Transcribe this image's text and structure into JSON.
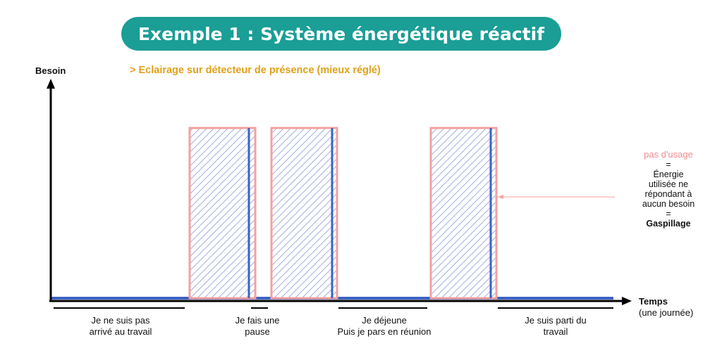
{
  "title": "Exemple 1 : Système énergétique réactif",
  "subtitle": "> Eclairage sur détecteur de présence (mieux réglé)",
  "axes": {
    "y_label": "Besoin",
    "x_label": "Temps",
    "x_sublabel": "(une journée)"
  },
  "annotation": {
    "heading": "pas d'usage",
    "eq1": "=",
    "line1": "Énergie",
    "line2": "utilisée ne",
    "line3": "répondant à",
    "line4": "aucun besoin",
    "eq2": "=",
    "result": "Gaspillage"
  },
  "periods": [
    {
      "line1": "Je ne suis pas",
      "line2": "arrivé au travail"
    },
    {
      "line1": "Je fais une",
      "line2": "pause"
    },
    {
      "line1": "Je déjeune",
      "line2": "Puis je pars en réunion"
    },
    {
      "line1": "Je suis parti du",
      "line2": "travail"
    }
  ],
  "colors": {
    "title_bg": "#1a9e96",
    "subtitle": "#e0a01a",
    "waste": "#f4a0a0",
    "usage": "#3b63c4"
  }
}
